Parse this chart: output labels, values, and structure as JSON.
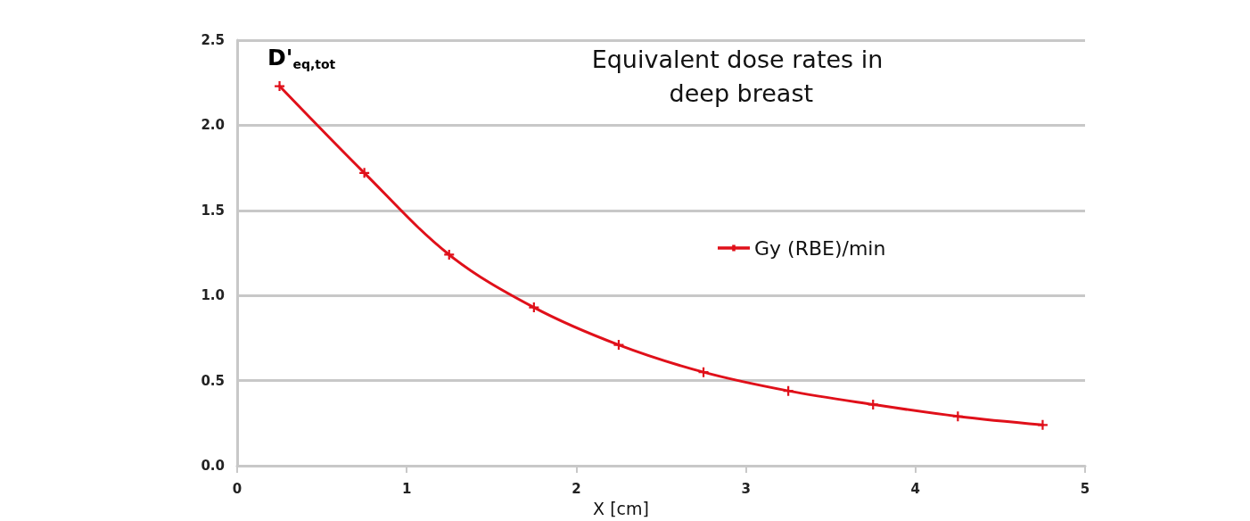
{
  "chart_data": {
    "type": "line",
    "title": "Equivalent dose rates in deep breast",
    "xlabel": "X [cm]",
    "annotations": [
      "D'$_{eq,tot}$"
    ],
    "x": [
      0.25,
      0.75,
      1.25,
      1.75,
      2.25,
      2.75,
      3.25,
      3.75,
      4.25,
      4.75
    ],
    "series": [
      {
        "name": "Gy (RBE)/min",
        "color": "#e0101a",
        "values": [
          2.23,
          1.72,
          1.24,
          0.93,
          0.71,
          0.55,
          0.44,
          0.36,
          0.29,
          0.24
        ]
      }
    ],
    "xlim": [
      0,
      5
    ],
    "xticks": [
      0,
      1,
      2,
      3,
      4,
      5
    ],
    "ylim": [
      0,
      2.5
    ],
    "yticks": [
      {
        "value": 0,
        "label": "0.0"
      },
      {
        "value": 0.5,
        "label": "0.5"
      },
      {
        "value": 1,
        "label": "1.0"
      },
      {
        "value": 1.5,
        "label": "1.5"
      },
      {
        "value": 2,
        "label": "2.0"
      },
      {
        "value": 2.5,
        "label": "2.5"
      }
    ],
    "grid": "y",
    "legend": "right",
    "marker": "cross",
    "line_style": "solid"
  }
}
